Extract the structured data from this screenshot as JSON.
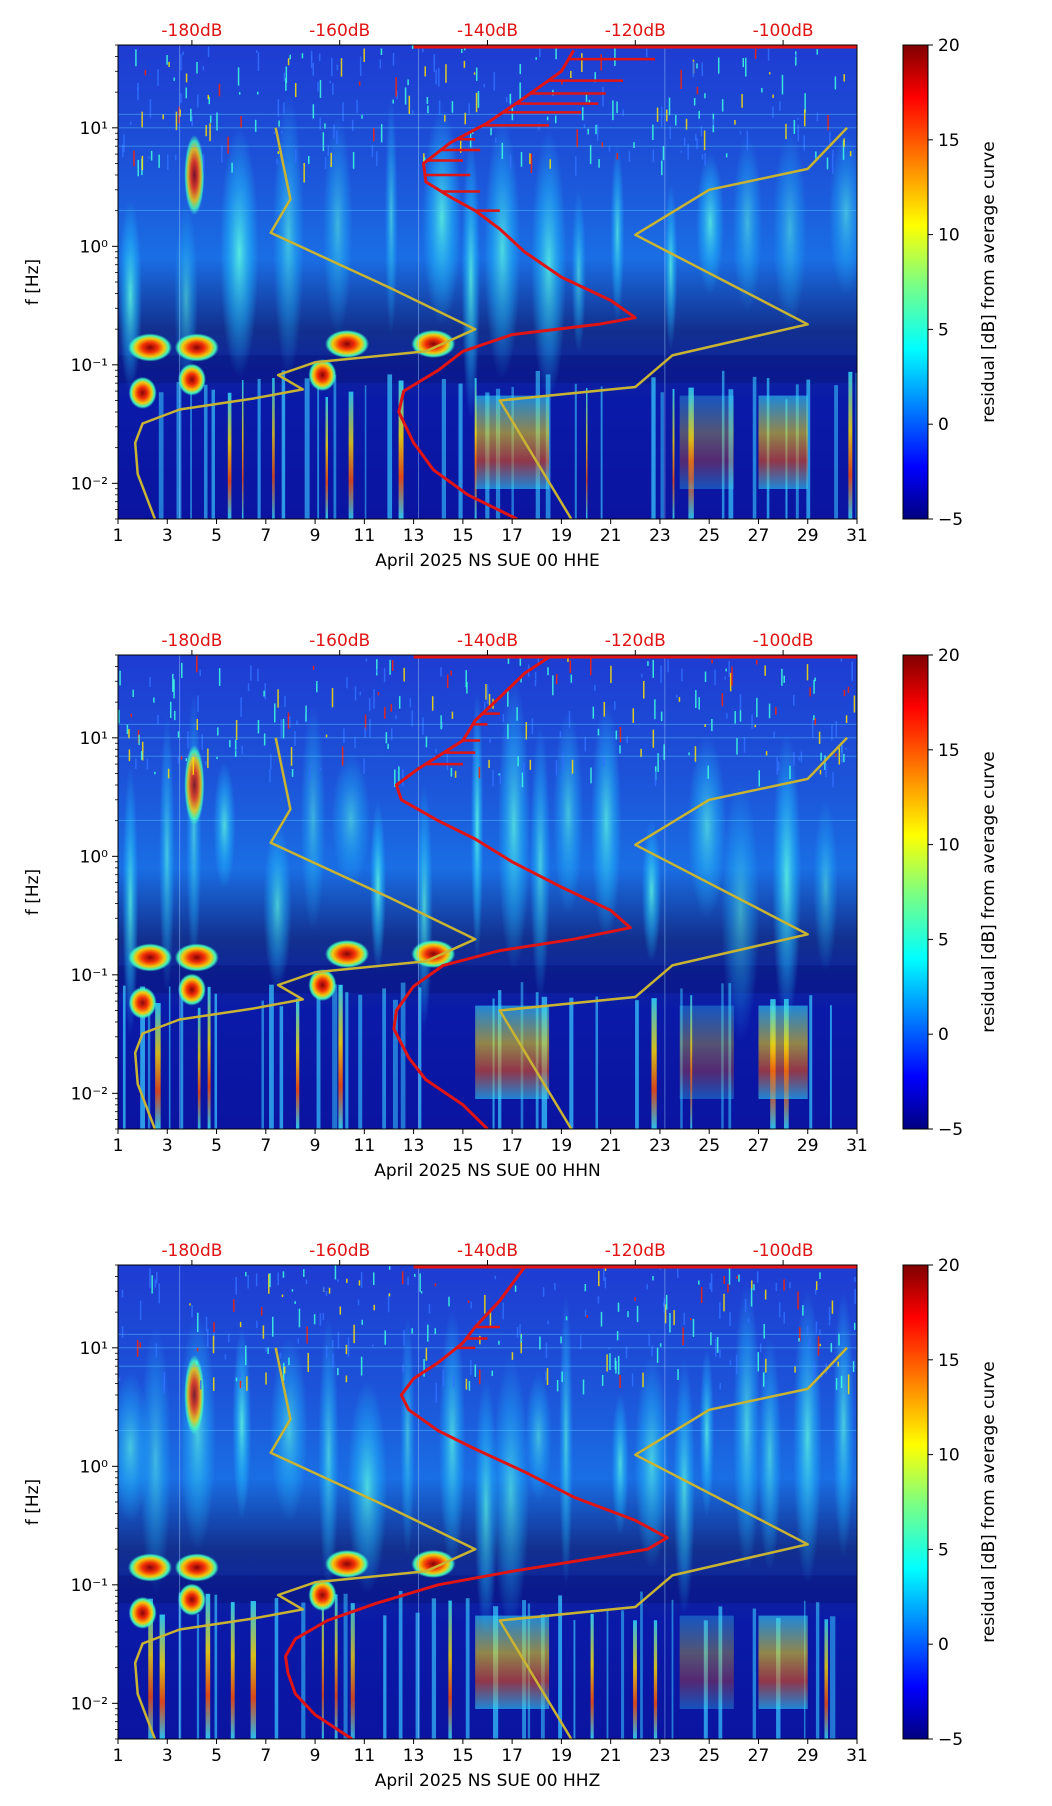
{
  "figure": {
    "colormap": "jet",
    "noise_model_color": "#c8b432",
    "median_curve_color": "#e01414",
    "top_label_color": "#e01414"
  },
  "chart_data": [
    {
      "type": "heatmap",
      "xlabel": "April 2025 NS SUE 00 HHE",
      "ylabel": "f [Hz]",
      "x_range": [
        1,
        31
      ],
      "x_ticks": [
        "1",
        "3",
        "5",
        "7",
        "9",
        "11",
        "13",
        "15",
        "17",
        "19",
        "21",
        "23",
        "25",
        "27",
        "29",
        "31"
      ],
      "y_scale": "log",
      "y_range": [
        0.005,
        50
      ],
      "y_ticks": [
        {
          "value": 10,
          "label": "10¹"
        },
        {
          "value": 1,
          "label": "10⁰"
        },
        {
          "value": 0.1,
          "label": "10⁻¹"
        },
        {
          "value": 0.01,
          "label": "10⁻²"
        }
      ],
      "top_axis": {
        "ticks": [
          "-180dB",
          "-160dB",
          "-140dB",
          "-120dB",
          "-100dB"
        ],
        "values": [
          -180,
          -160,
          -140,
          -120,
          -100
        ],
        "x_positions": [
          4.0,
          10.0,
          16.0,
          22.0,
          28.0
        ]
      },
      "colorbar": {
        "label": "residual [dB] from average curve",
        "range": [
          -5,
          20
        ],
        "ticks": [
          "20",
          "15",
          "10",
          "5",
          "0",
          "−5"
        ]
      },
      "series": [
        {
          "points": [
            [
              2.5,
              0.005
            ],
            [
              1.8,
              0.012
            ],
            [
              1.7,
              0.022
            ],
            [
              2.0,
              0.032
            ],
            [
              3.5,
              0.042
            ],
            [
              6.5,
              0.052
            ],
            [
              8.5,
              0.062
            ],
            [
              7.5,
              0.082
            ],
            [
              9.0,
              0.105
            ],
            [
              13.5,
              0.13
            ],
            [
              15.5,
              0.2
            ],
            [
              12.0,
              0.45
            ],
            [
              7.2,
              1.3
            ],
            [
              8.0,
              2.5
            ],
            [
              7.4,
              10.0
            ]
          ]
        },
        {
          "points": [
            [
              19.4,
              0.005
            ],
            [
              16.5,
              0.05
            ],
            [
              22.0,
              0.065
            ],
            [
              23.5,
              0.12
            ],
            [
              29.0,
              0.22
            ],
            [
              22.0,
              1.25
            ],
            [
              25.0,
              3.0
            ],
            [
              29.0,
              4.5
            ],
            [
              30.6,
              10.0
            ]
          ]
        },
        {
          "points": [
            [
              17.2,
              0.005
            ],
            [
              15.2,
              0.008
            ],
            [
              13.8,
              0.013
            ],
            [
              13.0,
              0.022
            ],
            [
              12.4,
              0.04
            ],
            [
              12.6,
              0.06
            ],
            [
              14.0,
              0.09
            ],
            [
              15.0,
              0.13
            ],
            [
              17.0,
              0.18
            ],
            [
              20.5,
              0.22
            ],
            [
              22.0,
              0.25
            ],
            [
              21.0,
              0.35
            ],
            [
              19.0,
              0.55
            ],
            [
              17.5,
              0.9
            ],
            [
              16.5,
              1.4
            ],
            [
              15.5,
              2.0
            ],
            [
              14.5,
              2.6
            ],
            [
              13.5,
              3.5
            ],
            [
              13.4,
              5.0
            ],
            [
              14.5,
              7.5
            ],
            [
              16.0,
              11.0
            ],
            [
              17.5,
              18.0
            ],
            [
              19.0,
              30.0
            ],
            [
              19.5,
              45.0
            ]
          ]
        }
      ],
      "spikes": [
        {
          "y": 2.0,
          "x": 16.5
        },
        {
          "y": 2.9,
          "x": 15.7
        },
        {
          "y": 4.0,
          "x": 15.3
        },
        {
          "y": 5.3,
          "x": 15.0
        },
        {
          "y": 6.5,
          "x": 15.7
        },
        {
          "y": 8.0,
          "x": 15.5
        },
        {
          "y": 10.5,
          "x": 18.5
        },
        {
          "y": 13.5,
          "x": 19.8
        },
        {
          "y": 16.0,
          "x": 20.5
        },
        {
          "y": 19.5,
          "x": 20.8
        },
        {
          "y": 25.0,
          "x": 21.5
        },
        {
          "y": 38.0,
          "x": 22.8
        },
        {
          "y": 48.0,
          "x": 22.0
        }
      ]
    },
    {
      "type": "heatmap",
      "xlabel": "April 2025 NS SUE 00 HHN",
      "ylabel": "f [Hz]",
      "x_range": [
        1,
        31
      ],
      "x_ticks": [
        "1",
        "3",
        "5",
        "7",
        "9",
        "11",
        "13",
        "15",
        "17",
        "19",
        "21",
        "23",
        "25",
        "27",
        "29",
        "31"
      ],
      "y_scale": "log",
      "y_range": [
        0.005,
        50
      ],
      "y_ticks": [
        {
          "value": 10,
          "label": "10¹"
        },
        {
          "value": 1,
          "label": "10⁰"
        },
        {
          "value": 0.1,
          "label": "10⁻¹"
        },
        {
          "value": 0.01,
          "label": "10⁻²"
        }
      ],
      "top_axis": {
        "ticks": [
          "-180dB",
          "-160dB",
          "-140dB",
          "-120dB",
          "-100dB"
        ],
        "values": [
          -180,
          -160,
          -140,
          -120,
          -100
        ],
        "x_positions": [
          4.0,
          10.0,
          16.0,
          22.0,
          28.0
        ]
      },
      "colorbar": {
        "label": "residual [dB] from average curve",
        "range": [
          -5,
          20
        ],
        "ticks": [
          "20",
          "15",
          "10",
          "5",
          "0",
          "−5"
        ]
      },
      "series": [
        {
          "points": [
            [
              2.5,
              0.005
            ],
            [
              1.8,
              0.012
            ],
            [
              1.7,
              0.022
            ],
            [
              2.0,
              0.032
            ],
            [
              3.5,
              0.042
            ],
            [
              6.5,
              0.052
            ],
            [
              8.5,
              0.062
            ],
            [
              7.5,
              0.082
            ],
            [
              9.0,
              0.105
            ],
            [
              13.5,
              0.13
            ],
            [
              15.5,
              0.2
            ],
            [
              12.0,
              0.45
            ],
            [
              7.2,
              1.3
            ],
            [
              8.0,
              2.5
            ],
            [
              7.4,
              10.0
            ]
          ]
        },
        {
          "points": [
            [
              19.4,
              0.005
            ],
            [
              16.5,
              0.05
            ],
            [
              22.0,
              0.065
            ],
            [
              23.5,
              0.12
            ],
            [
              29.0,
              0.22
            ],
            [
              22.0,
              1.25
            ],
            [
              25.0,
              3.0
            ],
            [
              29.0,
              4.5
            ],
            [
              30.6,
              10.0
            ]
          ]
        },
        {
          "points": [
            [
              16.0,
              0.005
            ],
            [
              15.0,
              0.008
            ],
            [
              13.5,
              0.013
            ],
            [
              12.8,
              0.02
            ],
            [
              12.2,
              0.035
            ],
            [
              12.3,
              0.05
            ],
            [
              13.0,
              0.08
            ],
            [
              14.2,
              0.12
            ],
            [
              16.5,
              0.16
            ],
            [
              19.5,
              0.2
            ],
            [
              21.8,
              0.25
            ],
            [
              21.0,
              0.35
            ],
            [
              19.0,
              0.55
            ],
            [
              17.0,
              0.9
            ],
            [
              15.5,
              1.4
            ],
            [
              14.0,
              2.0
            ],
            [
              12.5,
              3.0
            ],
            [
              12.3,
              4.0
            ],
            [
              13.2,
              5.5
            ],
            [
              14.0,
              7.0
            ],
            [
              15.0,
              9.5
            ],
            [
              15.5,
              14.0
            ],
            [
              16.5,
              22.0
            ],
            [
              17.5,
              35.0
            ],
            [
              18.5,
              48.0
            ]
          ]
        }
      ],
      "spikes": [
        {
          "y": 6.0,
          "x": 15.0
        },
        {
          "y": 7.5,
          "x": 15.5
        },
        {
          "y": 9.5,
          "x": 15.7
        },
        {
          "y": 13.0,
          "x": 16.0
        },
        {
          "y": 16.0,
          "x": 16.5
        },
        {
          "y": 48.0,
          "x": 18.0
        }
      ]
    },
    {
      "type": "heatmap",
      "xlabel": "April 2025 NS SUE 00 HHZ",
      "ylabel": "f [Hz]",
      "x_range": [
        1,
        31
      ],
      "x_ticks": [
        "1",
        "3",
        "5",
        "7",
        "9",
        "11",
        "13",
        "15",
        "17",
        "19",
        "21",
        "23",
        "25",
        "27",
        "29",
        "31"
      ],
      "y_scale": "log",
      "y_range": [
        0.005,
        50
      ],
      "y_ticks": [
        {
          "value": 10,
          "label": "10¹"
        },
        {
          "value": 1,
          "label": "10⁰"
        },
        {
          "value": 0.1,
          "label": "10⁻¹"
        },
        {
          "value": 0.01,
          "label": "10⁻²"
        }
      ],
      "top_axis": {
        "ticks": [
          "-180dB",
          "-160dB",
          "-140dB",
          "-120dB",
          "-100dB"
        ],
        "values": [
          -180,
          -160,
          -140,
          -120,
          -100
        ],
        "x_positions": [
          4.0,
          10.0,
          16.0,
          22.0,
          28.0
        ]
      },
      "colorbar": {
        "label": "residual [dB] from average curve",
        "range": [
          -5,
          20
        ],
        "ticks": [
          "20",
          "15",
          "10",
          "5",
          "0",
          "−5"
        ]
      },
      "series": [
        {
          "points": [
            [
              2.5,
              0.005
            ],
            [
              1.8,
              0.012
            ],
            [
              1.7,
              0.022
            ],
            [
              2.0,
              0.032
            ],
            [
              3.5,
              0.042
            ],
            [
              6.5,
              0.052
            ],
            [
              8.5,
              0.062
            ],
            [
              7.5,
              0.082
            ],
            [
              9.0,
              0.105
            ],
            [
              13.5,
              0.13
            ],
            [
              15.5,
              0.2
            ],
            [
              12.0,
              0.45
            ],
            [
              7.2,
              1.3
            ],
            [
              8.0,
              2.5
            ],
            [
              7.4,
              10.0
            ]
          ]
        },
        {
          "points": [
            [
              19.4,
              0.005
            ],
            [
              16.5,
              0.05
            ],
            [
              22.0,
              0.065
            ],
            [
              23.5,
              0.12
            ],
            [
              29.0,
              0.22
            ],
            [
              22.0,
              1.25
            ],
            [
              25.0,
              3.0
            ],
            [
              29.0,
              4.5
            ],
            [
              30.6,
              10.0
            ]
          ]
        },
        {
          "points": [
            [
              10.5,
              0.005
            ],
            [
              9.0,
              0.008
            ],
            [
              8.2,
              0.012
            ],
            [
              7.9,
              0.018
            ],
            [
              7.8,
              0.025
            ],
            [
              8.2,
              0.035
            ],
            [
              9.5,
              0.05
            ],
            [
              11.5,
              0.07
            ],
            [
              14.0,
              0.1
            ],
            [
              17.0,
              0.13
            ],
            [
              20.5,
              0.17
            ],
            [
              22.5,
              0.2
            ],
            [
              23.3,
              0.25
            ],
            [
              22.0,
              0.35
            ],
            [
              19.5,
              0.55
            ],
            [
              17.5,
              0.9
            ],
            [
              15.5,
              1.4
            ],
            [
              14.0,
              2.0
            ],
            [
              12.8,
              3.0
            ],
            [
              12.5,
              4.0
            ],
            [
              13.0,
              5.5
            ],
            [
              14.0,
              7.5
            ],
            [
              15.0,
              11.0
            ],
            [
              15.5,
              15.0
            ],
            [
              16.5,
              25.0
            ],
            [
              17.5,
              48.0
            ]
          ]
        }
      ],
      "spikes": [
        {
          "y": 10.0,
          "x": 15.5
        },
        {
          "y": 12.0,
          "x": 16.0
        },
        {
          "y": 15.0,
          "x": 16.5
        },
        {
          "y": 48.0,
          "x": 17.5
        }
      ]
    }
  ]
}
